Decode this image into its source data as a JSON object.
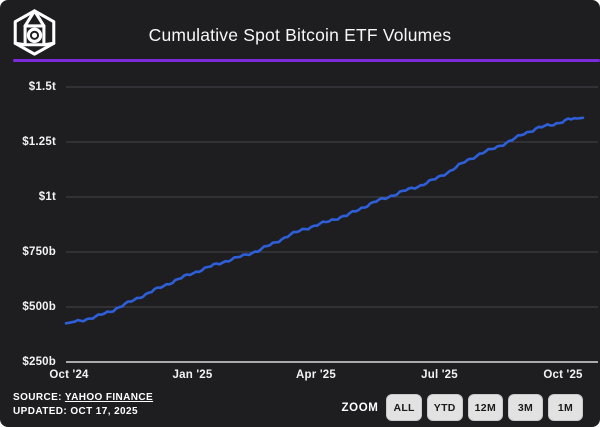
{
  "header": {
    "title": "Cumulative Spot Bitcoin ETF Volumes",
    "logo_icon": "cube-wireframe-logo"
  },
  "chart_data": {
    "type": "line",
    "title": "Cumulative Spot Bitcoin ETF Volumes",
    "grid": "horizontal",
    "legend": "none",
    "line_color": "#2e5fd8",
    "x_tick_labels": [
      "Oct '24",
      "Jan '25",
      "Apr '25",
      "Jul '25",
      "Oct '25"
    ],
    "y_tick_labels": [
      "$250b",
      "$500b",
      "$750b",
      "$1t",
      "$1.25t",
      "$1.5t"
    ],
    "y_tick_values_billions": [
      250,
      500,
      750,
      1000,
      1250,
      1500
    ],
    "ylim_billions": [
      250,
      1500
    ],
    "x_range": [
      "Oct '24",
      "Oct 17 '25"
    ],
    "series": [
      {
        "name": "Cumulative spot Bitcoin ETF volume (USD billions)",
        "values_billions": [
          426,
          438,
          455,
          480,
          512,
          545,
          577,
          608,
          638,
          665,
          690,
          712,
          733,
          756,
          788,
          822,
          852,
          872,
          896,
          916,
          950,
          980,
          1005,
          1030,
          1052,
          1082,
          1118,
          1160,
          1195,
          1222,
          1252,
          1288,
          1315,
          1330,
          1352,
          1360
        ]
      }
    ],
    "monthly_estimates_billions": {
      "Oct '24": 430,
      "Nov '24": 480,
      "Dec '24": 565,
      "Jan '25": 650,
      "Feb '25": 720,
      "Mar '25": 790,
      "Apr '25": 860,
      "May '25": 930,
      "Jun '25": 1005,
      "Jul '25": 1080,
      "Aug '25": 1170,
      "Sep '25": 1265,
      "Oct 17 '25": 1360
    }
  },
  "footer": {
    "source_label": "SOURCE:",
    "source_value": "YAHOO FINANCE",
    "updated_label": "UPDATED:",
    "updated_value": "OCT 17, 2025",
    "zoom_label": "ZOOM",
    "zoom_buttons": [
      "ALL",
      "YTD",
      "12M",
      "3M",
      "1M"
    ]
  },
  "colors": {
    "background": "#1e1e21",
    "accent_purple": "#7c2bdb",
    "line_blue": "#2e5fd8",
    "gridline": "#47474c",
    "axis_line": "#d9d9d9",
    "text": "#f2f2f2",
    "button_bg": "#e2e2e2",
    "button_text": "#1b1b1b"
  }
}
